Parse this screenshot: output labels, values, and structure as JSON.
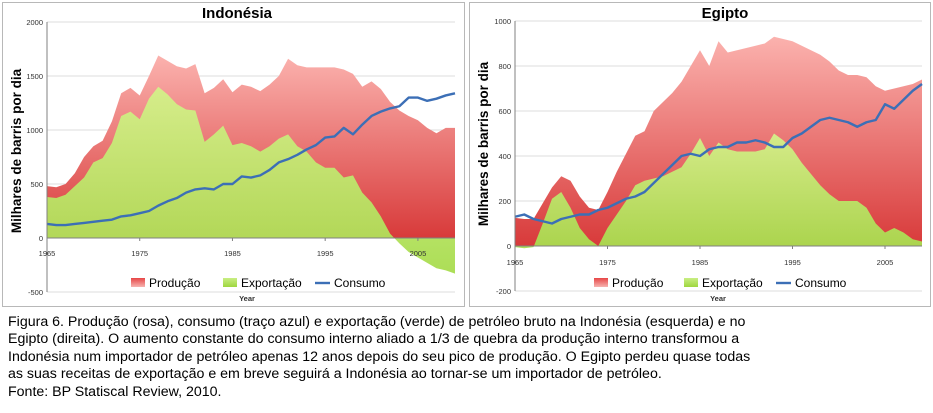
{
  "colors": {
    "production": "#d83a3a",
    "export": "#a8dc4e",
    "consumption": "#3c6fb6",
    "grid": "#dcdcdc",
    "axis": "#808080"
  },
  "chart_data": [
    {
      "type": "area",
      "title": "Indonésia",
      "xlabel": "Year",
      "ylabel": "Milhares de barris por dia",
      "xlim": [
        1965,
        2009
      ],
      "ylim": [
        -500,
        2000
      ],
      "yticks": [
        -500,
        0,
        500,
        1000,
        1500,
        2000
      ],
      "xticks": [
        1965,
        1975,
        1985,
        1995,
        2005
      ],
      "x": [
        1965,
        1966,
        1967,
        1968,
        1969,
        1970,
        1971,
        1972,
        1973,
        1974,
        1975,
        1976,
        1977,
        1978,
        1979,
        1980,
        1981,
        1982,
        1983,
        1984,
        1985,
        1986,
        1987,
        1988,
        1989,
        1990,
        1991,
        1992,
        1993,
        1994,
        1995,
        1996,
        1997,
        1998,
        1999,
        2000,
        2001,
        2002,
        2003,
        2004,
        2005,
        2006,
        2007,
        2008,
        2009
      ],
      "series": [
        {
          "name": "Produção",
          "values": [
            480,
            470,
            500,
            600,
            750,
            850,
            900,
            1080,
            1340,
            1390,
            1320,
            1500,
            1690,
            1640,
            1590,
            1570,
            1610,
            1340,
            1390,
            1470,
            1350,
            1420,
            1400,
            1360,
            1420,
            1500,
            1660,
            1600,
            1580,
            1580,
            1580,
            1580,
            1560,
            1520,
            1400,
            1450,
            1380,
            1260,
            1180,
            1130,
            1090,
            1020,
            970,
            1020,
            1020
          ]
        },
        {
          "name": "Exportação",
          "values": [
            380,
            370,
            400,
            480,
            560,
            700,
            740,
            880,
            1130,
            1170,
            1100,
            1290,
            1400,
            1330,
            1240,
            1190,
            1180,
            890,
            960,
            1040,
            860,
            880,
            850,
            800,
            850,
            920,
            960,
            850,
            800,
            700,
            650,
            650,
            560,
            580,
            420,
            330,
            200,
            40,
            -50,
            -130,
            -180,
            -230,
            -280,
            -300,
            -330
          ]
        },
        {
          "name": "Consumo",
          "values": [
            130,
            120,
            120,
            130,
            140,
            150,
            160,
            170,
            200,
            210,
            230,
            250,
            300,
            340,
            370,
            420,
            450,
            460,
            450,
            500,
            500,
            570,
            560,
            580,
            630,
            700,
            730,
            770,
            820,
            860,
            930,
            940,
            1020,
            960,
            1050,
            1130,
            1170,
            1200,
            1220,
            1300,
            1300,
            1270,
            1290,
            1320,
            1340
          ]
        }
      ]
    },
    {
      "type": "area",
      "title": "Egipto",
      "xlabel": "Year",
      "ylabel": "Milhares de barris por dia",
      "xlim": [
        1965,
        2009
      ],
      "ylim": [
        -200,
        1000
      ],
      "yticks": [
        -200,
        0,
        200,
        400,
        600,
        800,
        1000
      ],
      "xticks": [
        1965,
        1975,
        1985,
        1995,
        2005
      ],
      "x": [
        1965,
        1966,
        1967,
        1968,
        1969,
        1970,
        1971,
        1972,
        1973,
        1974,
        1975,
        1976,
        1977,
        1978,
        1979,
        1980,
        1981,
        1982,
        1983,
        1984,
        1985,
        1986,
        1987,
        1988,
        1989,
        1990,
        1991,
        1992,
        1993,
        1994,
        1995,
        1996,
        1997,
        1998,
        1999,
        2000,
        2001,
        2002,
        2003,
        2004,
        2005,
        2006,
        2007,
        2008,
        2009
      ],
      "series": [
        {
          "name": "Produção",
          "values": [
            125,
            120,
            120,
            190,
            260,
            310,
            290,
            220,
            170,
            160,
            240,
            330,
            410,
            490,
            510,
            600,
            640,
            680,
            730,
            800,
            870,
            800,
            910,
            860,
            870,
            880,
            890,
            900,
            930,
            920,
            910,
            890,
            870,
            850,
            820,
            780,
            760,
            760,
            750,
            710,
            690,
            700,
            710,
            720,
            740
          ]
        },
        {
          "name": "Exportação",
          "values": [
            -5,
            -10,
            -5,
            100,
            210,
            240,
            170,
            80,
            30,
            0,
            80,
            140,
            200,
            270,
            290,
            300,
            310,
            330,
            350,
            410,
            480,
            400,
            460,
            430,
            420,
            420,
            420,
            430,
            500,
            470,
            430,
            370,
            320,
            270,
            230,
            200,
            200,
            200,
            170,
            100,
            60,
            80,
            60,
            30,
            20
          ]
        },
        {
          "name": "Consumo",
          "values": [
            130,
            140,
            120,
            110,
            100,
            120,
            130,
            140,
            140,
            160,
            170,
            190,
            210,
            220,
            240,
            280,
            320,
            360,
            400,
            410,
            400,
            430,
            440,
            440,
            460,
            460,
            470,
            460,
            440,
            440,
            480,
            500,
            530,
            560,
            570,
            560,
            550,
            530,
            550,
            560,
            630,
            610,
            650,
            690,
            720
          ]
        }
      ]
    }
  ],
  "legend": {
    "production": "Produção",
    "export": "Exportação",
    "consumption": "Consumo"
  },
  "caption": {
    "line1": "Figura 6.  Produção (rosa), consumo (traço azul) e exportação (verde) de petróleo bruto na Indonésia (esquerda) e no",
    "line2": "Egipto (direita).  O aumento constante do consumo interno aliado a 1/3 de quebra da produção interno transformou a",
    "line3": "Indonésia num importador de petróleo apenas 12 anos depois do seu pico de produção.  O Egipto perdeu quase todas",
    "line4": "as suas receitas de exportação e em breve seguirá a Indonésia ao tornar-se um importador de petróleo.",
    "line5": "Fonte: BP Statiscal Review, 2010."
  }
}
